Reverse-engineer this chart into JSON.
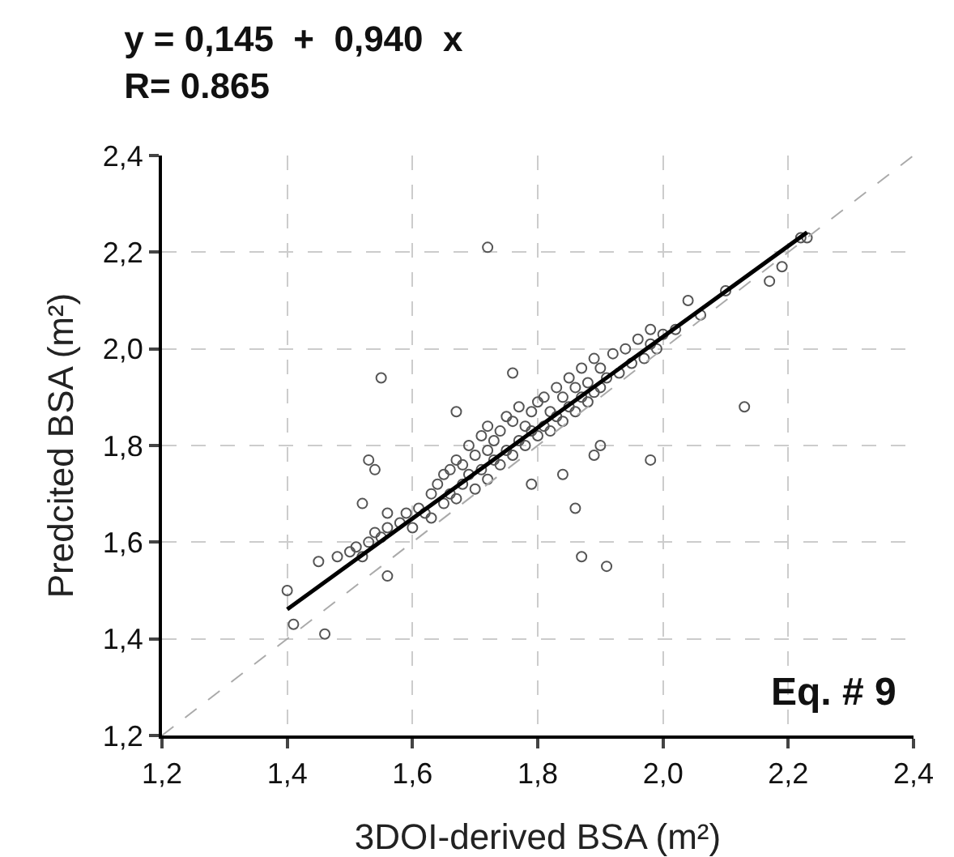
{
  "chart_data": {
    "type": "scatter",
    "title": "y = 0,145  +  0,940  x",
    "subtitle": "R= 0.865",
    "xlabel": "3DOI-derived BSA (m²)",
    "ylabel": "Predcited BSA (m²)",
    "annotations": [
      "Eq. # 9"
    ],
    "xlim": [
      1.2,
      2.4
    ],
    "ylim": [
      1.2,
      2.4
    ],
    "xticks": [
      {
        "value": 1.2,
        "label": "1,2"
      },
      {
        "value": 1.4,
        "label": "1,4"
      },
      {
        "value": 1.6,
        "label": "1,6"
      },
      {
        "value": 1.8,
        "label": "1,8"
      },
      {
        "value": 2.0,
        "label": "2,0"
      },
      {
        "value": 2.2,
        "label": "2,2"
      },
      {
        "value": 2.4,
        "label": "2,4"
      }
    ],
    "yticks": [
      {
        "value": 1.2,
        "label": "1,2"
      },
      {
        "value": 1.4,
        "label": "1,4"
      },
      {
        "value": 1.6,
        "label": "1,6"
      },
      {
        "value": 1.8,
        "label": "1,8"
      },
      {
        "value": 2.0,
        "label": "2,0"
      },
      {
        "value": 2.2,
        "label": "2,2"
      },
      {
        "value": 2.4,
        "label": "2,4"
      }
    ],
    "grid": true,
    "series": [
      {
        "marker": "circle",
        "color": "#555555",
        "x": [
          1.4,
          1.41,
          1.46,
          1.45,
          1.48,
          1.5,
          1.51,
          1.52,
          1.53,
          1.54,
          1.55,
          1.56,
          1.56,
          1.58,
          1.59,
          1.6,
          1.61,
          1.62,
          1.63,
          1.63,
          1.64,
          1.65,
          1.65,
          1.66,
          1.66,
          1.67,
          1.67,
          1.68,
          1.68,
          1.69,
          1.69,
          1.7,
          1.7,
          1.71,
          1.71,
          1.72,
          1.72,
          1.72,
          1.73,
          1.73,
          1.74,
          1.74,
          1.75,
          1.75,
          1.76,
          1.76,
          1.77,
          1.77,
          1.78,
          1.78,
          1.79,
          1.79,
          1.8,
          1.8,
          1.81,
          1.81,
          1.82,
          1.82,
          1.83,
          1.83,
          1.84,
          1.84,
          1.85,
          1.85,
          1.86,
          1.86,
          1.87,
          1.87,
          1.88,
          1.88,
          1.89,
          1.89,
          1.9,
          1.9,
          1.91,
          1.92,
          1.93,
          1.94,
          1.95,
          1.96,
          1.97,
          1.98,
          1.98,
          1.99,
          2.0,
          2.02,
          2.04,
          2.06,
          2.1,
          2.13,
          2.17,
          2.19,
          2.22,
          2.23,
          1.72,
          1.55,
          1.53,
          1.54,
          1.52,
          1.56,
          1.67,
          1.76,
          1.87,
          1.91,
          1.86,
          1.98,
          1.84,
          1.89,
          1.79,
          1.9
        ],
        "values": [
          1.5,
          1.43,
          1.41,
          1.56,
          1.57,
          1.58,
          1.59,
          1.57,
          1.6,
          1.62,
          1.61,
          1.63,
          1.66,
          1.64,
          1.66,
          1.63,
          1.67,
          1.66,
          1.7,
          1.65,
          1.72,
          1.68,
          1.74,
          1.7,
          1.75,
          1.69,
          1.77,
          1.72,
          1.76,
          1.74,
          1.8,
          1.71,
          1.78,
          1.75,
          1.82,
          1.73,
          1.79,
          1.84,
          1.77,
          1.81,
          1.76,
          1.83,
          1.79,
          1.86,
          1.78,
          1.85,
          1.81,
          1.88,
          1.8,
          1.84,
          1.83,
          1.87,
          1.82,
          1.89,
          1.84,
          1.9,
          1.83,
          1.87,
          1.86,
          1.92,
          1.85,
          1.9,
          1.88,
          1.94,
          1.87,
          1.92,
          1.9,
          1.96,
          1.89,
          1.93,
          1.91,
          1.98,
          1.92,
          1.96,
          1.94,
          1.99,
          1.95,
          2.0,
          1.97,
          2.02,
          1.98,
          2.01,
          2.04,
          2.0,
          2.03,
          2.04,
          2.1,
          2.07,
          2.12,
          1.88,
          2.14,
          2.17,
          2.23,
          2.23,
          2.21,
          1.94,
          1.77,
          1.75,
          1.68,
          1.53,
          1.87,
          1.95,
          1.57,
          1.55,
          1.67,
          1.77,
          1.74,
          1.78,
          1.72,
          1.8
        ]
      },
      {
        "type": "line",
        "color": "#000000",
        "line_style": "solid",
        "x": [
          1.4,
          2.23
        ],
        "values": [
          1.461,
          2.241
        ]
      },
      {
        "type": "line",
        "color": "#aaaaaa",
        "line_style": "dashed",
        "x": [
          1.2,
          2.4
        ],
        "values": [
          1.2,
          2.4
        ]
      }
    ]
  }
}
